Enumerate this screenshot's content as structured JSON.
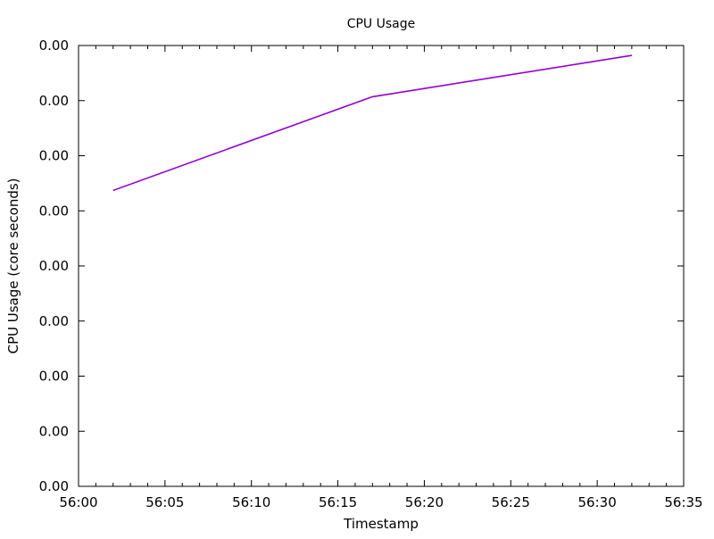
{
  "chart_data": {
    "type": "line",
    "title": "CPU Usage",
    "xlabel": "Timestamp",
    "ylabel": "CPU Usage (core seconds)",
    "x_ticks": [
      "56:00",
      "56:05",
      "56:10",
      "56:15",
      "56:20",
      "56:25",
      "56:30",
      "56:35"
    ],
    "y_ticks": [
      "0.00",
      "0.00",
      "0.00",
      "0.00",
      "0.00",
      "0.00",
      "0.00",
      "0.00",
      "0.00"
    ],
    "xlim": [
      "56:00",
      "56:35"
    ],
    "ylim": [
      0,
      8
    ],
    "grid": false,
    "series": [
      {
        "color": "#9400d3",
        "x": [
          "56:02",
          "56:17",
          "56:32"
        ],
        "y": [
          5.37,
          7.07,
          7.82
        ]
      }
    ]
  }
}
